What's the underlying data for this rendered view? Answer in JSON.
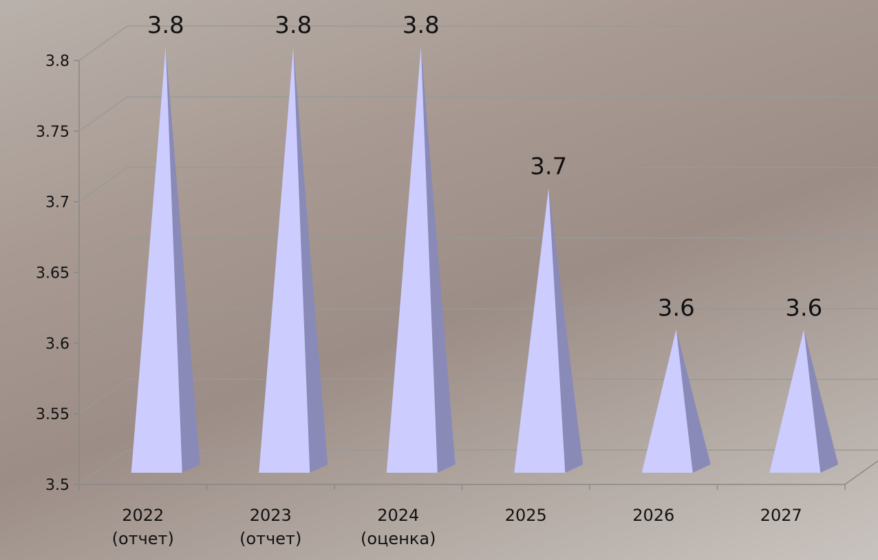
{
  "chart_data": {
    "type": "pyramid",
    "categories": [
      "2022\n(отчет)",
      "2023\n(отчет)",
      "2024\n(оценка)",
      "2025",
      "2026",
      "2027"
    ],
    "values": [
      3.8,
      3.8,
      3.8,
      3.7,
      3.6,
      3.6
    ],
    "color": "#ccccff",
    "ylim": [
      3.5,
      3.8
    ],
    "yticks": [
      3.5,
      3.55,
      3.6,
      3.65,
      3.7,
      3.75,
      3.8
    ],
    "grid": true
  }
}
